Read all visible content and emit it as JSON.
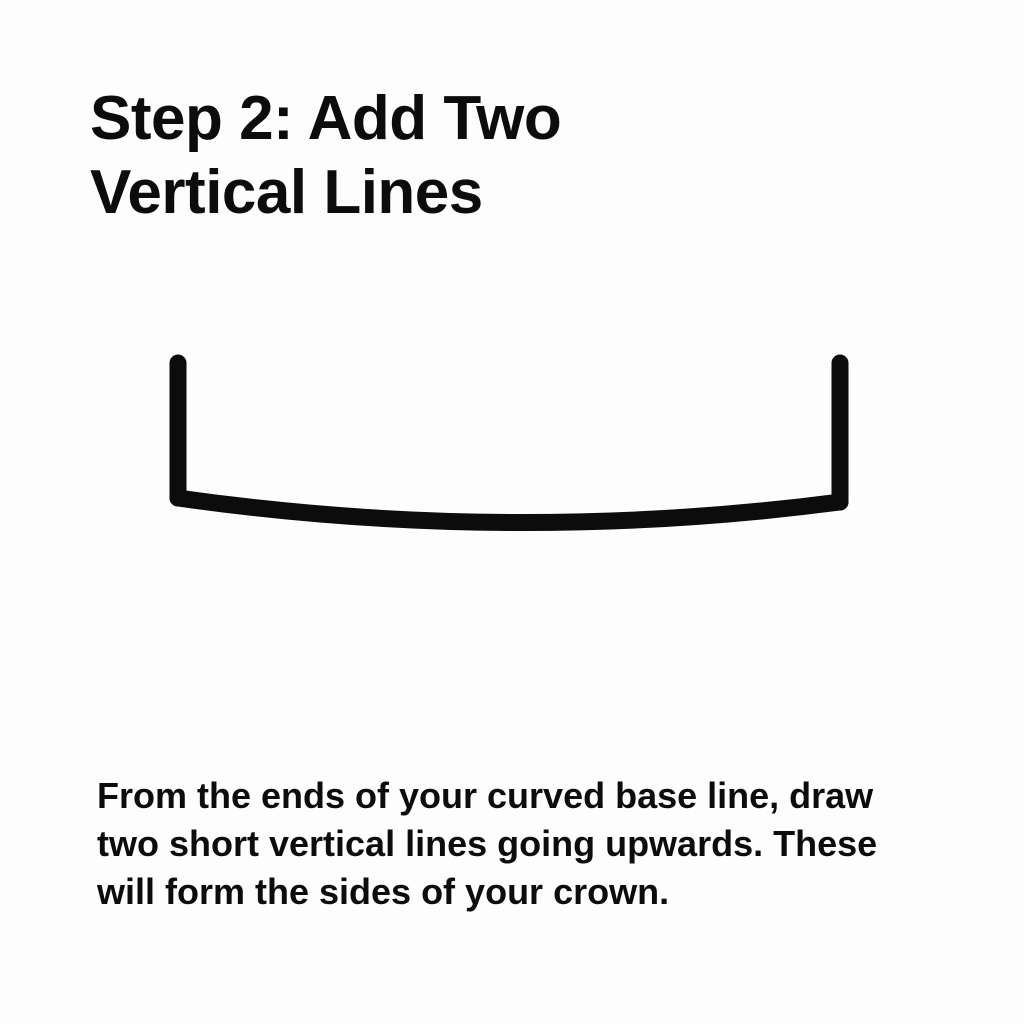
{
  "title": {
    "line1": "Step 2: Add Two",
    "line2": "Vertical Lines"
  },
  "instruction": {
    "line1": "From the ends of your curved base line, draw",
    "line2": "two short vertical lines going upwards. These",
    "line3": "will form the sides of your crown."
  },
  "colors": {
    "ink": "#0c0c0c",
    "background": "#fdfdfd"
  }
}
